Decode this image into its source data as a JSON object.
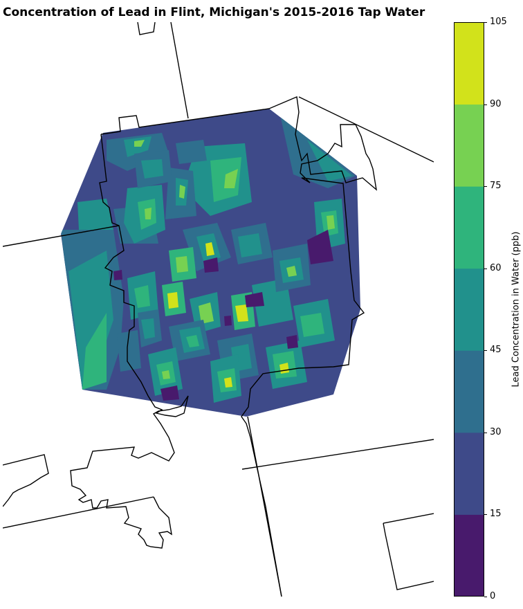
{
  "title": "Concentration of Lead in Flint, Michigan's 2015-2016 Tap Water",
  "colorbar": {
    "label": "Lead Concentration in Water (ppb)",
    "ticks": [
      "0",
      "15",
      "30",
      "45",
      "60",
      "75",
      "90",
      "105"
    ],
    "bands": [
      {
        "range": "0-15",
        "color": "#481a6c"
      },
      {
        "range": "15-30",
        "color": "#3e4a89"
      },
      {
        "range": "30-45",
        "color": "#2f6f8e"
      },
      {
        "range": "45-60",
        "color": "#21918c"
      },
      {
        "range": "60-75",
        "color": "#2fb47c"
      },
      {
        "range": "75-90",
        "color": "#77d152"
      },
      {
        "range": "90-105",
        "color": "#d2e21b"
      }
    ]
  },
  "map": {
    "boundary_color": "#000000",
    "region": "Flint, Michigan"
  }
}
